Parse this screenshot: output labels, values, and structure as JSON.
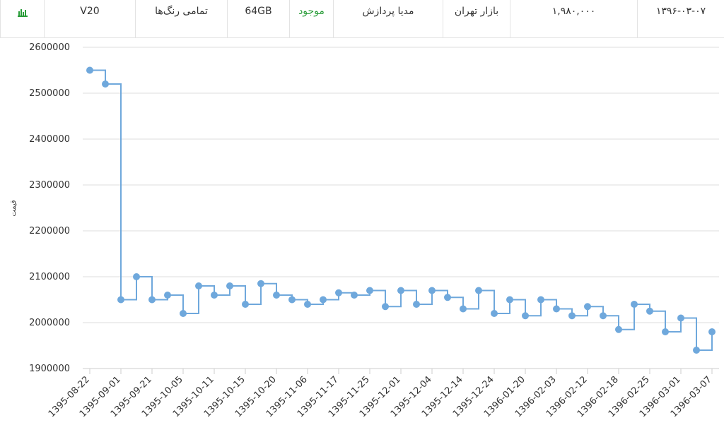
{
  "table": {
    "rows": [
      [
        "V20",
        "تمامی رنگ‌ها",
        "64GB",
        "موجود",
        "مدیا پردازش",
        "بازار تهران",
        "۱,۹۸۰,۰۰۰",
        "۱۳۹۶-۰۳-۰۷"
      ]
    ]
  },
  "chart_data": {
    "type": "step",
    "y_label": "قیمت",
    "categories": [
      "1395-08-22",
      null,
      "1395-09-01",
      null,
      "1395-09-21",
      null,
      "1395-10-05",
      null,
      "1395-10-11",
      null,
      "1395-10-15",
      null,
      "1395-10-20",
      null,
      "1395-11-06",
      null,
      "1395-11-17",
      null,
      "1395-11-25",
      null,
      "1395-12-01",
      null,
      "1395-12-04",
      null,
      "1395-12-14",
      null,
      "1395-12-24",
      null,
      "1396-01-20",
      null,
      "1396-02-03",
      null,
      "1396-02-12",
      null,
      "1396-02-18",
      null,
      "1396-02-25",
      null,
      "1396-03-01",
      null,
      "1396-03-07"
    ],
    "series": [
      {
        "color": "#6fa8dc",
        "values": [
          2550000,
          2520000,
          2050000,
          2100000,
          2050000,
          2060000,
          2020000,
          2080000,
          2060000,
          2080000,
          2040000,
          2085000,
          2060000,
          2050000,
          2040000,
          2050000,
          2065000,
          2060000,
          2070000,
          2035000,
          2070000,
          2040000,
          2070000,
          2055000,
          2030000,
          2070000,
          2020000,
          2050000,
          2015000,
          2050000,
          2030000,
          2015000,
          2035000,
          2015000,
          1985000,
          2040000,
          2025000,
          1980000,
          2010000,
          1940000,
          1980000
        ]
      }
    ],
    "ylim": [
      1900000,
      2600000
    ],
    "yticks": [
      1900000,
      2000000,
      2100000,
      2200000,
      2300000,
      2400000,
      2500000,
      2600000
    ],
    "grid": true
  }
}
